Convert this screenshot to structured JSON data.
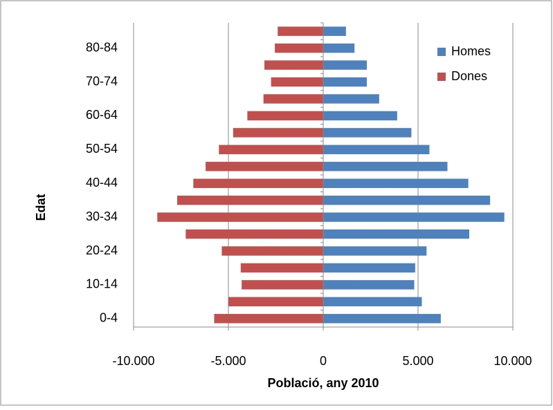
{
  "chart_data": {
    "type": "bar",
    "orientation": "horizontal",
    "stacked": false,
    "y_label": "Edat",
    "x_label": "Població, any 2010",
    "categories": [
      "0-4",
      null,
      "10-14",
      null,
      "20-24",
      null,
      "30-34",
      null,
      "40-44",
      null,
      "50-54",
      null,
      "60-64",
      null,
      "70-74",
      null,
      "80-84",
      null
    ],
    "series": [
      {
        "name": "Homes",
        "color": "#4f81bd",
        "values": [
          6200,
          5200,
          4800,
          4850,
          5450,
          7700,
          9550,
          8800,
          7650,
          6550,
          5600,
          4650,
          3900,
          2950,
          2300,
          2300,
          1650,
          1200
        ]
      },
      {
        "name": "Dones",
        "color": "#c0504d",
        "values": [
          -5750,
          -5000,
          -4300,
          -4350,
          -5350,
          -7250,
          -8750,
          -7700,
          -6850,
          -6200,
          -5500,
          -4750,
          -4000,
          -3150,
          -2750,
          -3100,
          -2550,
          -2400
        ]
      }
    ],
    "xlim": [
      -10000,
      10000
    ],
    "xticks": [
      {
        "value": -10000,
        "label": "-10.000"
      },
      {
        "value": -5000,
        "label": "-5.000"
      },
      0,
      {
        "value": 5000,
        "label": "5.000"
      },
      {
        "value": 10000,
        "label": "10.000"
      }
    ],
    "grid": true,
    "legend": "top-right"
  }
}
